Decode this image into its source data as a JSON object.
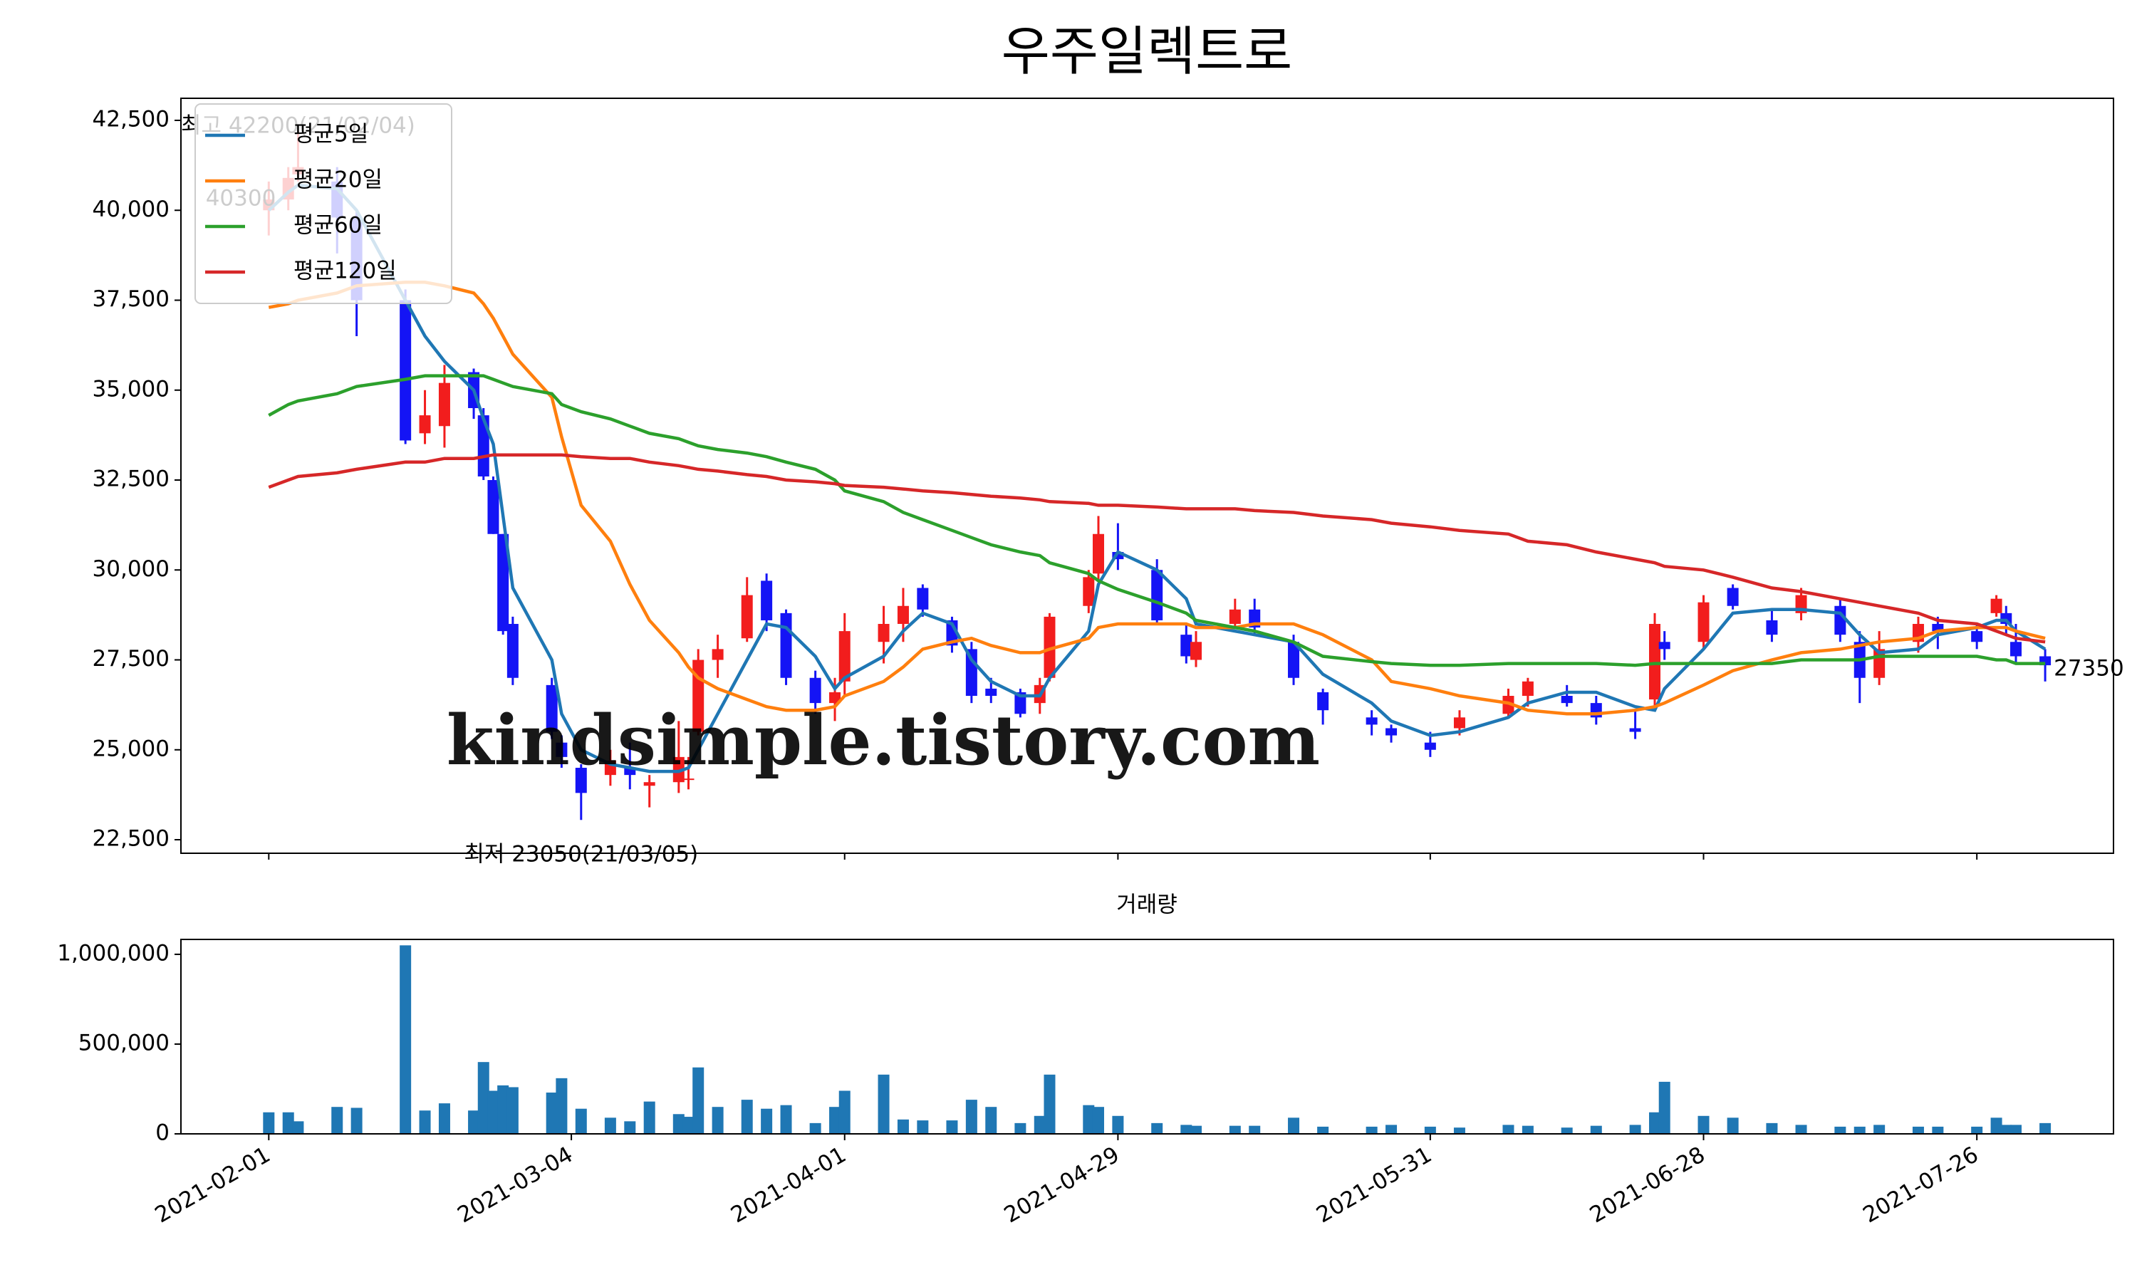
{
  "chart_data": [
    {
      "type": "candlestick",
      "title": "우주일렉트로",
      "x": [
        "2021-02-01",
        "2021-02-03",
        "2021-02-04",
        "2021-02-08",
        "2021-02-10",
        "2021-02-15",
        "2021-02-17",
        "2021-02-19",
        "2021-02-22",
        "2021-02-23",
        "2021-02-24",
        "2021-02-25",
        "2021-02-26",
        "2021-03-02",
        "2021-03-03",
        "2021-03-05",
        "2021-03-08",
        "2021-03-10",
        "2021-03-12",
        "2021-03-15",
        "2021-03-16",
        "2021-03-17",
        "2021-03-19",
        "2021-03-22",
        "2021-03-24",
        "2021-03-26",
        "2021-03-29",
        "2021-03-31",
        "2021-04-01",
        "2021-04-05",
        "2021-04-07",
        "2021-04-09",
        "2021-04-12",
        "2021-04-14",
        "2021-04-16",
        "2021-04-19",
        "2021-04-21",
        "2021-04-22",
        "2021-04-26",
        "2021-04-27",
        "2021-04-29",
        "2021-05-03",
        "2021-05-06",
        "2021-05-07",
        "2021-05-11",
        "2021-05-13",
        "2021-05-17",
        "2021-05-20",
        "2021-05-25",
        "2021-05-27",
        "2021-05-31",
        "2021-06-03",
        "2021-06-08",
        "2021-06-10",
        "2021-06-14",
        "2021-06-17",
        "2021-06-21",
        "2021-06-23",
        "2021-06-24",
        "2021-06-28",
        "2021-07-01",
        "2021-07-05",
        "2021-07-08",
        "2021-07-12",
        "2021-07-14",
        "2021-07-16",
        "2021-07-20",
        "2021-07-22",
        "2021-07-26",
        "2021-07-28",
        "2021-07-29",
        "2021-07-30",
        "2021-08-02"
      ],
      "open": [
        40000,
        40300,
        41000,
        40800,
        39800,
        37500,
        33800,
        34000,
        35500,
        34300,
        32500,
        31000,
        28500,
        26800,
        25200,
        24500,
        24300,
        24500,
        24000,
        24100,
        24200,
        25500,
        27500,
        28100,
        29700,
        28800,
        27000,
        26300,
        26900,
        28000,
        28500,
        29500,
        28600,
        27800,
        26700,
        26600,
        26300,
        27000,
        29000,
        29900,
        30500,
        30000,
        28200,
        27500,
        28500,
        28900,
        28000,
        26600,
        25900,
        25600,
        25200,
        25600,
        26000,
        26500,
        26500,
        26300,
        25600,
        26400,
        28000,
        28000,
        29500,
        28600,
        28800,
        29000,
        28000,
        27000,
        28000,
        28500,
        28300,
        28800,
        28800,
        28000,
        27600
      ],
      "high": [
        40800,
        41200,
        42200,
        41200,
        40000,
        37800,
        35000,
        35700,
        35600,
        34500,
        32600,
        31000,
        28700,
        27000,
        25400,
        24600,
        25000,
        25200,
        24300,
        25800,
        24800,
        27800,
        28200,
        29800,
        29900,
        28900,
        27200,
        27000,
        28800,
        29000,
        29500,
        29600,
        28700,
        28000,
        27000,
        26700,
        27000,
        28800,
        30000,
        31500,
        31300,
        30300,
        28500,
        28300,
        29200,
        29200,
        28200,
        26700,
        26100,
        25700,
        25500,
        26100,
        26700,
        27000,
        26800,
        26500,
        26100,
        28800,
        28300,
        29300,
        29600,
        28900,
        29500,
        29200,
        28300,
        28300,
        28700,
        28700,
        28500,
        29300,
        29000,
        28500,
        27800
      ],
      "low": [
        39300,
        40000,
        40800,
        38800,
        36500,
        33500,
        33500,
        33400,
        34200,
        32500,
        31000,
        28200,
        26800,
        25300,
        24500,
        23050,
        24000,
        23900,
        23400,
        23800,
        23900,
        25400,
        27000,
        28000,
        28300,
        26800,
        26000,
        25800,
        26500,
        27400,
        28000,
        28700,
        27700,
        26300,
        26300,
        25900,
        26000,
        26900,
        28800,
        29700,
        30000,
        28500,
        27400,
        27300,
        28400,
        28200,
        26800,
        25700,
        25400,
        25200,
        24800,
        25400,
        25900,
        26200,
        26200,
        25700,
        25300,
        26200,
        27500,
        27800,
        28900,
        28000,
        28600,
        28000,
        26300,
        26800,
        27700,
        27800,
        27800,
        28700,
        28200,
        27400,
        26900
      ],
      "close": [
        40300,
        40900,
        41200,
        39800,
        37500,
        33600,
        34300,
        35200,
        34500,
        32600,
        31000,
        28300,
        27000,
        25500,
        24800,
        23800,
        24700,
        24300,
        24100,
        24800,
        24200,
        27500,
        27800,
        29300,
        28600,
        27000,
        26300,
        26600,
        28300,
        28500,
        29000,
        28900,
        27900,
        26500,
        26500,
        26000,
        26800,
        28700,
        29800,
        31000,
        30300,
        28600,
        27600,
        28000,
        28900,
        28400,
        27000,
        26100,
        25700,
        25400,
        25000,
        25900,
        26500,
        26900,
        26300,
        25900,
        25500,
        28500,
        27800,
        29100,
        29000,
        28200,
        29300,
        28200,
        27000,
        27800,
        28500,
        28300,
        28000,
        29200,
        28500,
        27600,
        27350
      ],
      "up_color": "#f21d1d",
      "down_color": "#1414f5",
      "series": [
        {
          "name": "평균5일",
          "color": "#1f77b4",
          "values": [
            40000,
            40500,
            40700,
            40600,
            40000,
            37500,
            36500,
            35800,
            35000,
            34200,
            33500,
            31500,
            29500,
            27500,
            26000,
            25000,
            24600,
            24500,
            24400,
            24400,
            24500,
            25000,
            26000,
            27500,
            28500,
            28400,
            27600,
            26700,
            27000,
            27600,
            28300,
            28800,
            28500,
            27500,
            26900,
            26500,
            26500,
            27000,
            28300,
            29600,
            30500,
            30000,
            29200,
            28500,
            28300,
            28200,
            28000,
            27100,
            26300,
            25800,
            25400,
            25500,
            25900,
            26300,
            26600,
            26600,
            26200,
            26100,
            26700,
            27800,
            28800,
            28900,
            28900,
            28800,
            28200,
            27700,
            27800,
            28200,
            28400,
            28600,
            28600,
            28300,
            27800
          ]
        },
        {
          "name": "평균20일",
          "color": "#ff7f0e",
          "values": [
            37300,
            37400,
            37500,
            37700,
            37900,
            38000,
            38000,
            37900,
            37700,
            37400,
            37000,
            36500,
            36000,
            34800,
            33700,
            31800,
            30800,
            29600,
            28600,
            27700,
            27300,
            27000,
            26700,
            26400,
            26200,
            26100,
            26100,
            26200,
            26500,
            26900,
            27300,
            27800,
            28000,
            28100,
            27900,
            27700,
            27700,
            27800,
            28100,
            28400,
            28500,
            28500,
            28500,
            28400,
            28400,
            28500,
            28500,
            28200,
            27500,
            26900,
            26700,
            26500,
            26300,
            26100,
            26000,
            26000,
            26100,
            26200,
            26300,
            26800,
            27200,
            27500,
            27700,
            27800,
            27900,
            28000,
            28100,
            28300,
            28400,
            28400,
            28400,
            28300,
            28100
          ]
        },
        {
          "name": "평균60일",
          "color": "#2ca02c",
          "values": [
            34300,
            34600,
            34700,
            34900,
            35100,
            35300,
            35400,
            35400,
            35400,
            35400,
            35300,
            35200,
            35100,
            34900,
            34600,
            34400,
            34200,
            34000,
            33800,
            33650,
            33550,
            33450,
            33350,
            33250,
            33150,
            33000,
            32800,
            32500,
            32200,
            31900,
            31600,
            31400,
            31100,
            30900,
            30700,
            30500,
            30400,
            30200,
            29900,
            29700,
            29460,
            29100,
            28800,
            28600,
            28400,
            28300,
            28000,
            27600,
            27450,
            27400,
            27350,
            27350,
            27400,
            27400,
            27400,
            27400,
            27350,
            27400,
            27400,
            27400,
            27400,
            27400,
            27500,
            27500,
            27500,
            27600,
            27600,
            27600,
            27600,
            27500,
            27500,
            27400,
            27400
          ]
        },
        {
          "name": "평균120일",
          "color": "#d62728",
          "values": [
            32300,
            32500,
            32600,
            32700,
            32800,
            33000,
            33000,
            33100,
            33100,
            33150,
            33200,
            33200,
            33200,
            33200,
            33200,
            33150,
            33100,
            33100,
            33000,
            32900,
            32850,
            32800,
            32750,
            32650,
            32600,
            32500,
            32450,
            32400,
            32350,
            32300,
            32250,
            32200,
            32150,
            32100,
            32050,
            32000,
            31950,
            31900,
            31850,
            31800,
            31800,
            31750,
            31700,
            31700,
            31700,
            31650,
            31600,
            31500,
            31400,
            31300,
            31200,
            31100,
            31000,
            30800,
            30700,
            30500,
            30300,
            30200,
            30100,
            30000,
            29800,
            29500,
            29400,
            29200,
            29100,
            29000,
            28800,
            28600,
            28500,
            28300,
            28200,
            28100,
            28000
          ]
        }
      ],
      "annotations": {
        "high": "최고 42200(21/02/04)",
        "high_color": "#ff0000",
        "low": "최저 23050(21/03/05)",
        "low_color": "#0000ff",
        "first": "40300",
        "last": "27350"
      },
      "watermark": "kindsimple.tistory.com",
      "watermark_color": "#e3a3ee",
      "legend": "upper left",
      "xlim": [
        "2021-01-23",
        "2021-08-09"
      ],
      "xticks": [
        "2021-02-01",
        "2021-03-04",
        "2021-04-01",
        "2021-04-29",
        "2021-05-31",
        "2021-06-28",
        "2021-07-26"
      ],
      "ylim": [
        22124,
        43114
      ],
      "yticks": [
        {
          "value": 22500,
          "label": "22,500"
        },
        {
          "value": 25000,
          "label": "25,000"
        },
        {
          "value": 27500,
          "label": "27,500"
        },
        {
          "value": 30000,
          "label": "30,000"
        },
        {
          "value": 32500,
          "label": "32,500"
        },
        {
          "value": 35000,
          "label": "35,000"
        },
        {
          "value": 37500,
          "label": "37,500"
        },
        {
          "value": 40000,
          "label": "40,000"
        },
        {
          "value": 42500,
          "label": "42,500"
        }
      ]
    },
    {
      "type": "bar",
      "title": "거래량",
      "color": "#1f77b4",
      "values": [
        120000,
        120000,
        70000,
        150000,
        145000,
        1050000,
        130000,
        170000,
        130000,
        400000,
        240000,
        270000,
        260000,
        230000,
        310000,
        140000,
        90000,
        70000,
        180000,
        110000,
        95000,
        370000,
        150000,
        190000,
        140000,
        160000,
        60000,
        150000,
        240000,
        330000,
        80000,
        75000,
        75000,
        190000,
        150000,
        60000,
        100000,
        330000,
        160000,
        150000,
        100000,
        60000,
        50000,
        45000,
        45000,
        45000,
        90000,
        40000,
        40000,
        50000,
        40000,
        35000,
        50000,
        45000,
        35000,
        45000,
        50000,
        120000,
        290000,
        100000,
        90000,
        60000,
        50000,
        40000,
        40000,
        50000,
        40000,
        40000,
        40000,
        90000,
        50000,
        50000,
        60000
      ],
      "xlim": [
        "2021-01-23",
        "2021-08-09"
      ],
      "xticks": [
        "2021-02-01",
        "2021-03-04",
        "2021-04-01",
        "2021-04-29",
        "2021-05-31",
        "2021-06-28",
        "2021-07-26"
      ],
      "ylim": [
        0,
        1083000
      ],
      "yticks": [
        0,
        {
          "value": 500000,
          "label": "500,000"
        },
        {
          "value": 1000000,
          "label": "1,000,000"
        }
      ]
    }
  ]
}
